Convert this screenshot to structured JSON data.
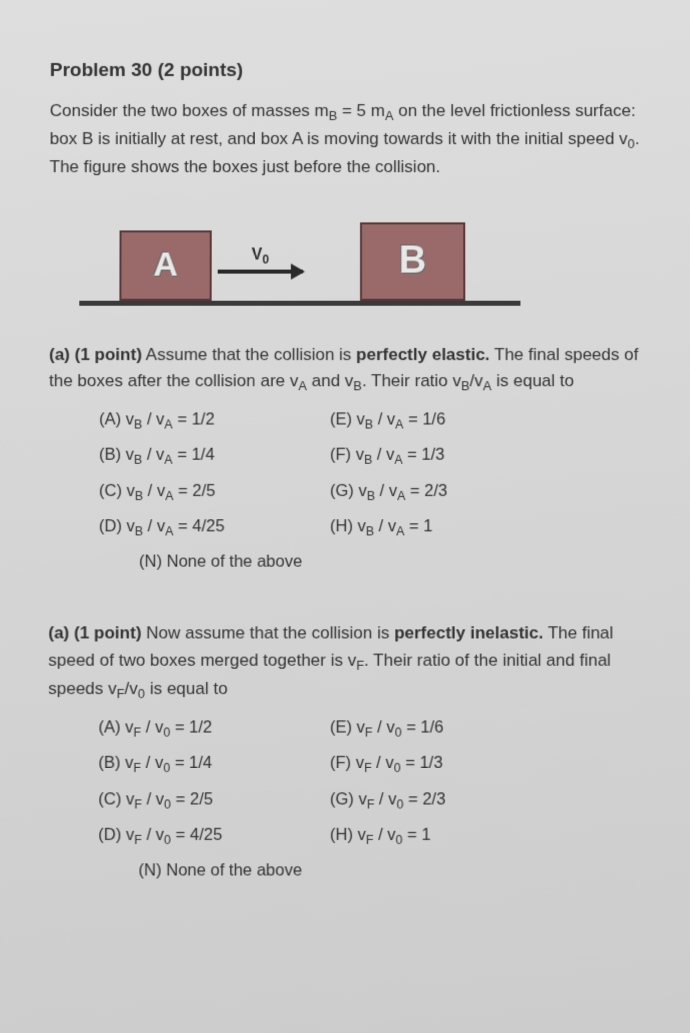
{
  "title": "Problem 30 (2 points)",
  "intro_line1": "Consider the two boxes of masses m",
  "intro_sub1": "B",
  "intro_mid1": " = 5 m",
  "intro_sub2": "A",
  "intro_mid2": " on the level frictionless surface: box B is initially at rest, and box A is moving towards it with the initial speed v",
  "intro_sub3": "0",
  "intro_mid3": ". The figure shows the boxes just before the collision.",
  "diagram": {
    "boxA_label": "A",
    "boxB_label": "B",
    "velocity_label": "V",
    "velocity_sub": "0"
  },
  "partA": {
    "lead": "(a) (1 point)",
    "rest1": " Assume that the collision is ",
    "emph": "perfectly elastic.",
    "rest2": " The final speeds of the boxes after the collision are v",
    "subA": "A",
    "rest3": " and v",
    "subB": "B",
    "rest4": ". Their ratio v",
    "subB2": "B",
    "rest5": "/v",
    "subA2": "A",
    "rest6": " is equal to",
    "options": [
      {
        "l": "(A) v",
        "ls1": "B",
        "lm": " / v",
        "ls2": "A",
        "lv": " = 1/2",
        "r": "(E) v",
        "rs1": "B",
        "rm": " / v",
        "rs2": "A",
        "rv": " = 1/6"
      },
      {
        "l": "(B) v",
        "ls1": "B",
        "lm": " / v",
        "ls2": "A",
        "lv": " = 1/4",
        "r": "(F) v",
        "rs1": "B",
        "rm": " / v",
        "rs2": "A",
        "rv": " = 1/3"
      },
      {
        "l": "(C) v",
        "ls1": "B",
        "lm": " / v",
        "ls2": "A",
        "lv": " = 2/5",
        "r": "(G) v",
        "rs1": "B",
        "rm": " / v",
        "rs2": "A",
        "rv": " = 2/3"
      },
      {
        "l": "(D) v",
        "ls1": "B",
        "lm": " / v",
        "ls2": "A",
        "lv": " = 4/25",
        "r": "(H) v",
        "rs1": "B",
        "rm": " / v",
        "rs2": "A",
        "rv": " = 1"
      }
    ],
    "none": "(N) None of the above"
  },
  "partB": {
    "lead": "(a) (1 point)",
    "rest1": " Now assume that the collision is ",
    "emph": "perfectly inelastic.",
    "rest2": " The final speed of two boxes merged together is v",
    "subF": "F",
    "rest3": ". Their ratio of the initial and final speeds v",
    "subF2": "F",
    "rest4": "/v",
    "sub0": "0",
    "rest5": " is equal to",
    "options": [
      {
        "l": "(A) v",
        "ls1": "F",
        "lm": " / v",
        "ls2": "0",
        "lv": " = 1/2",
        "r": "(E) v",
        "rs1": "F",
        "rm": " / v",
        "rs2": "0",
        "rv": " = 1/6"
      },
      {
        "l": "(B) v",
        "ls1": "F",
        "lm": " / v",
        "ls2": "0",
        "lv": " = 1/4",
        "r": "(F) v",
        "rs1": "F",
        "rm": " / v",
        "rs2": "0",
        "rv": " = 1/3"
      },
      {
        "l": "(C) v",
        "ls1": "F",
        "lm": " / v",
        "ls2": "0",
        "lv": " = 2/5",
        "r": "(G) v",
        "rs1": "F",
        "rm": " / v",
        "rs2": "0",
        "rv": " = 2/3"
      },
      {
        "l": "(D) v",
        "ls1": "F",
        "lm": " / v",
        "ls2": "0",
        "lv": " = 4/25",
        "r": "(H) v",
        "rs1": "F",
        "rm": " / v",
        "rs2": "0",
        "rv": " = 1"
      }
    ],
    "none": "(N) None of the above"
  }
}
